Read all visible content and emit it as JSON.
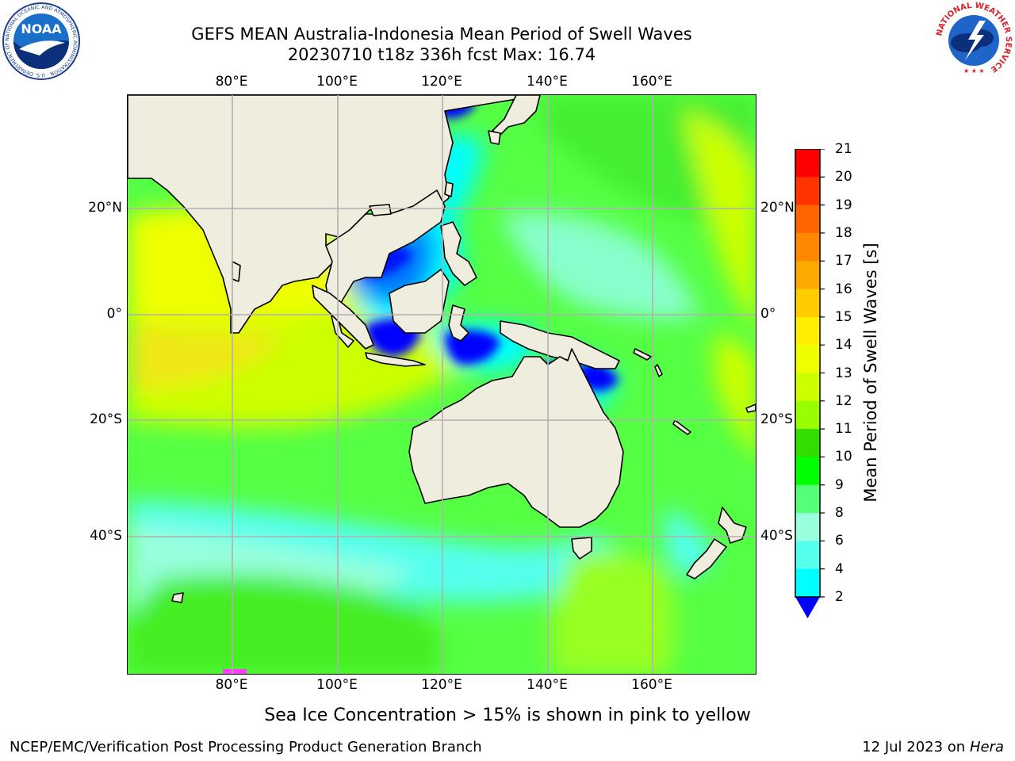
{
  "title": {
    "line1": "GEFS MEAN Australia-Indonesia Mean Period of Swell Waves",
    "line2": "20230710 t18z 336h fcst   Max: 16.74"
  },
  "map": {
    "lon_labels": [
      "80°E",
      "100°E",
      "120°E",
      "140°E",
      "160°E"
    ],
    "lat_labels": [
      "20°N",
      "0°",
      "20°S",
      "40°S"
    ],
    "colors": {
      "land": "#efedde",
      "coast": "#000000",
      "grid": "#b0b0b0",
      "seaice": "#ff40ff"
    }
  },
  "colorbar": {
    "label": "Mean Period of Swell Waves [s]",
    "ticks": [
      "21",
      "20",
      "19",
      "18",
      "17",
      "16",
      "15",
      "14",
      "13",
      "12",
      "11",
      "10",
      "9",
      "8",
      "6",
      "4",
      "2"
    ],
    "colors": [
      "#ff0000",
      "#ff3300",
      "#ff6600",
      "#ff8800",
      "#ffaa00",
      "#ffcc00",
      "#ffee00",
      "#eeff00",
      "#ccff00",
      "#99ff00",
      "#33dd00",
      "#00ff00",
      "#55ff77",
      "#99ffdd",
      "#55ffee",
      "#00ffff",
      "#00ccff",
      "#0077ff",
      "#0000ff"
    ]
  },
  "note": "Sea Ice Concentration > 15% is shown in pink to yellow",
  "footer": {
    "left": "NCEP/EMC/Verification Post Processing Product Generation Branch",
    "date": "12 Jul 2023 on ",
    "host": "Hera"
  },
  "logos": {
    "noaa_text": "NOAA",
    "noaa_ring": "NATIONAL OCEANIC AND ATMOSPHERIC ADMINISTRATION · U.S. DEPARTMENT OF COMMERCE",
    "nws_ring": "NATIONAL WEATHER SERVICE"
  }
}
